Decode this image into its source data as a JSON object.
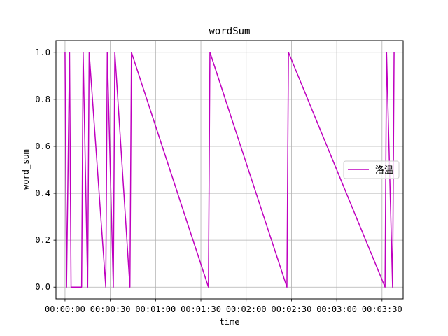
{
  "chart_data": {
    "type": "line",
    "title": "wordSum",
    "xlabel": "time",
    "ylabel": "word_sum",
    "x_unit": "seconds",
    "xlim": [
      -6,
      224
    ],
    "ylim": [
      -0.05,
      1.05
    ],
    "x_ticks": [
      0,
      30,
      60,
      90,
      120,
      150,
      180,
      210
    ],
    "x_tick_labels": [
      "00:00:00",
      "00:00:30",
      "00:01:00",
      "00:01:30",
      "00:02:00",
      "00:02:30",
      "00:03:00",
      "00:03:30"
    ],
    "y_ticks": [
      0.0,
      0.2,
      0.4,
      0.6,
      0.8,
      1.0
    ],
    "y_tick_labels": [
      "0.0",
      "0.2",
      "0.4",
      "0.6",
      "0.8",
      "1.0"
    ],
    "grid": true,
    "legend_position": "center-right",
    "series": [
      {
        "name": "洛温",
        "color": "#bf00bf",
        "x": [
          0,
          1,
          3,
          4,
          11,
          12,
          15,
          16,
          27,
          28,
          32,
          33,
          43,
          44,
          95,
          96,
          147,
          148,
          212,
          213,
          217,
          218
        ],
        "y": [
          1,
          0,
          1,
          0,
          0,
          1,
          0,
          1,
          0,
          1,
          0,
          1,
          0,
          1,
          0,
          1,
          0,
          1,
          0,
          1,
          0,
          1
        ]
      }
    ]
  }
}
